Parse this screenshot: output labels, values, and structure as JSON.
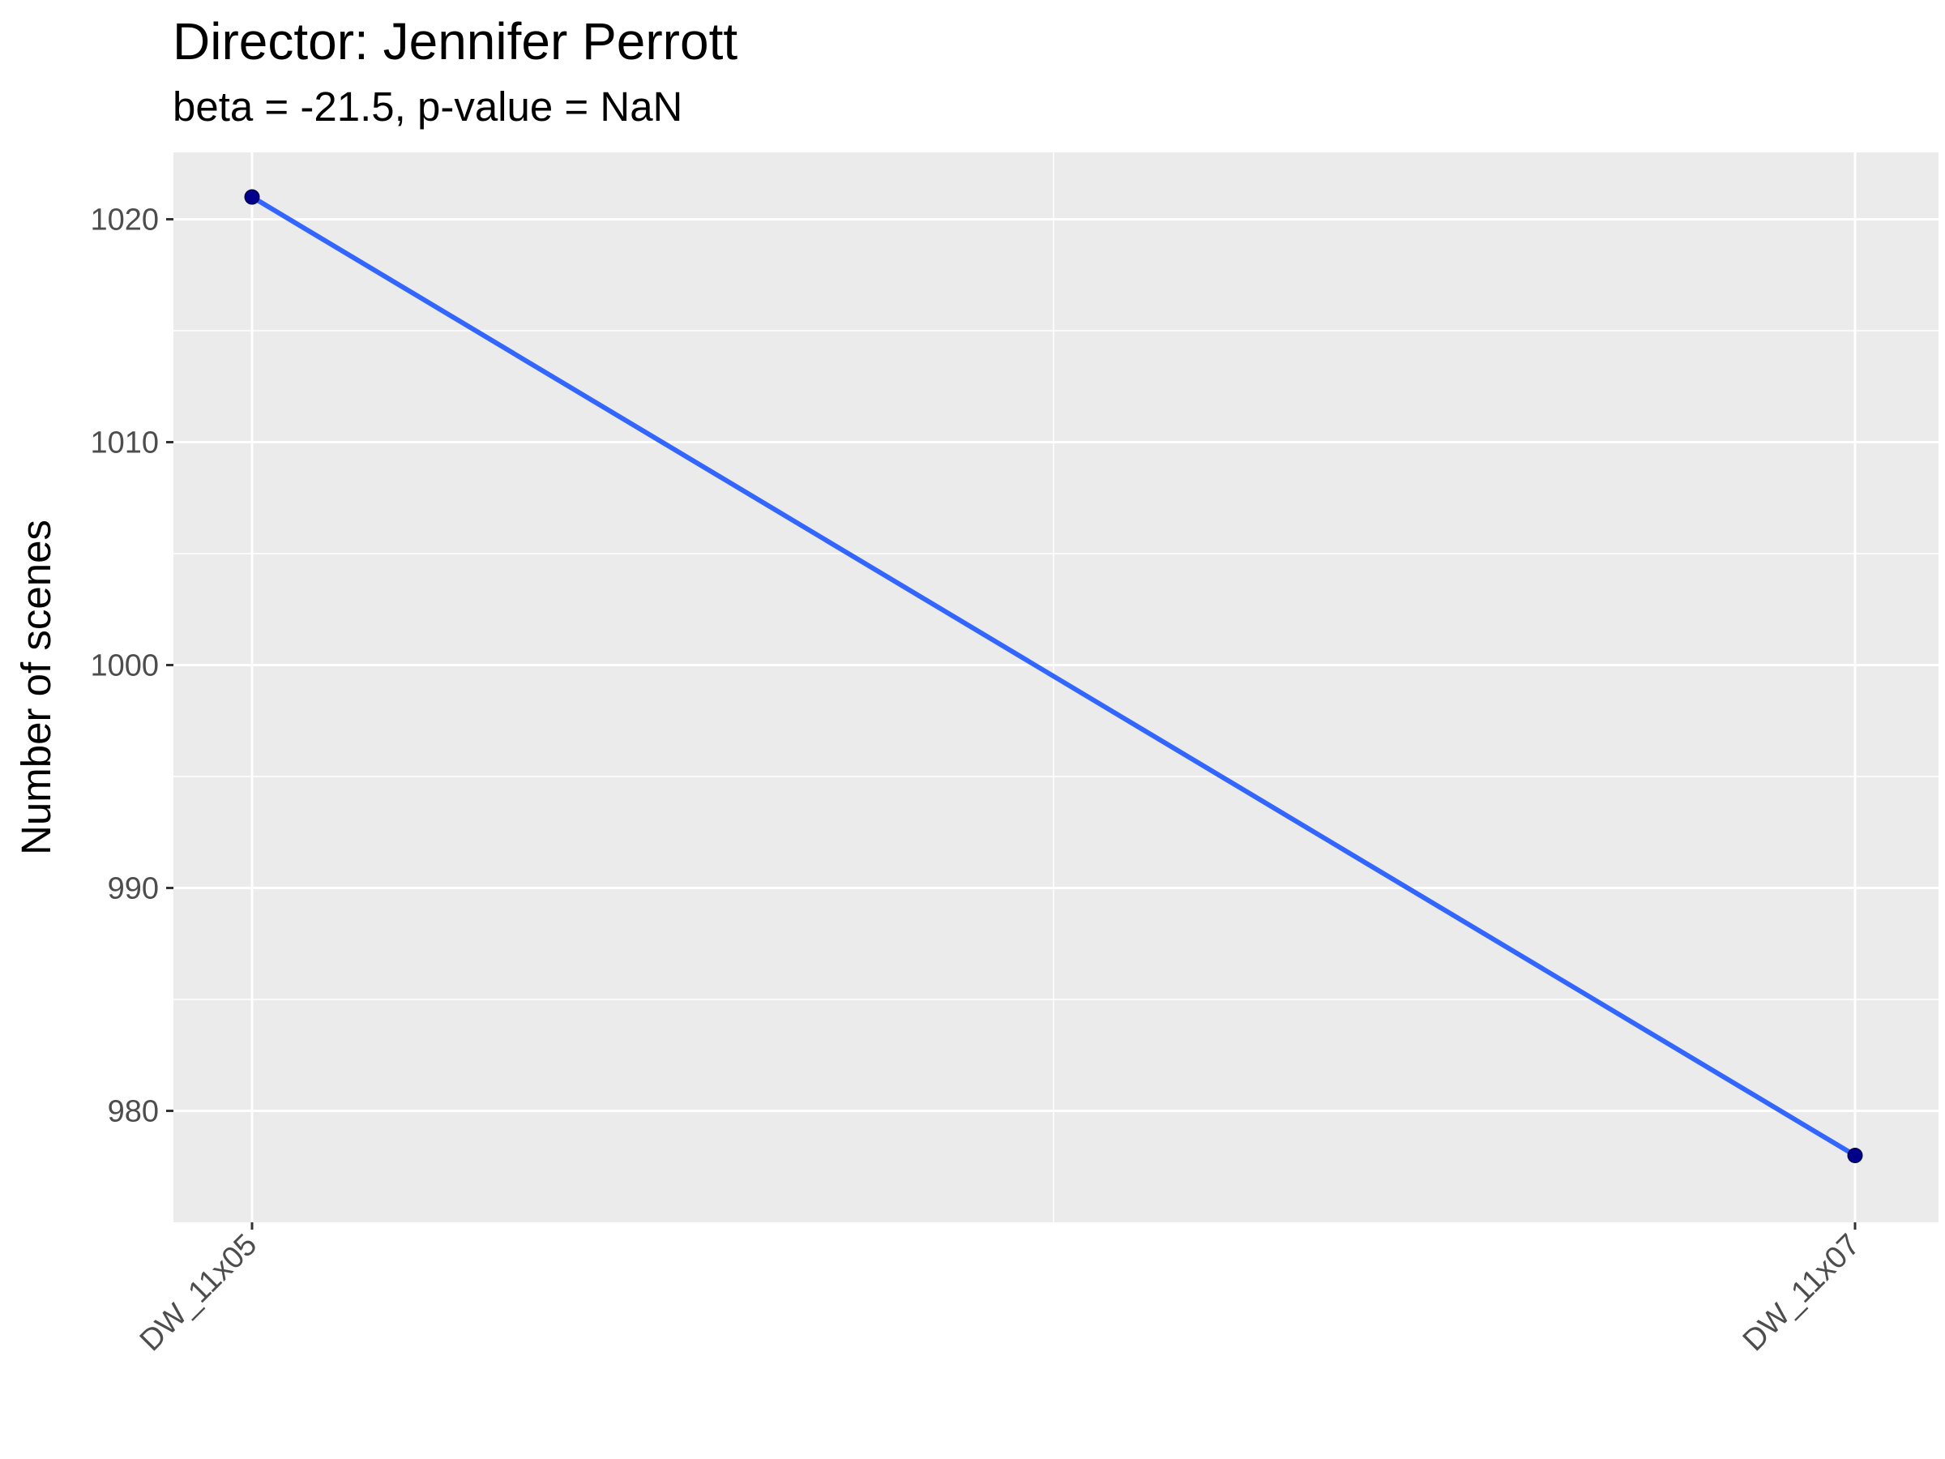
{
  "chart_data": {
    "type": "line",
    "title": "Director: Jennifer Perrott",
    "subtitle": "beta = -21.5, p-value = NaN",
    "xlabel": "",
    "ylabel": "Number of scenes",
    "categories": [
      "DW_11x05",
      "DW_11x07"
    ],
    "series": [
      {
        "values": [
          1021,
          978
        ]
      }
    ],
    "ylim": [
      975,
      1023
    ],
    "yticks": [
      980,
      990,
      1000,
      1010,
      1020
    ],
    "grid": true,
    "legend": "none",
    "colors": {
      "line": "#3366ff",
      "points": "#00008b",
      "panel": "#ebebeb",
      "grid": "#ffffff"
    }
  }
}
